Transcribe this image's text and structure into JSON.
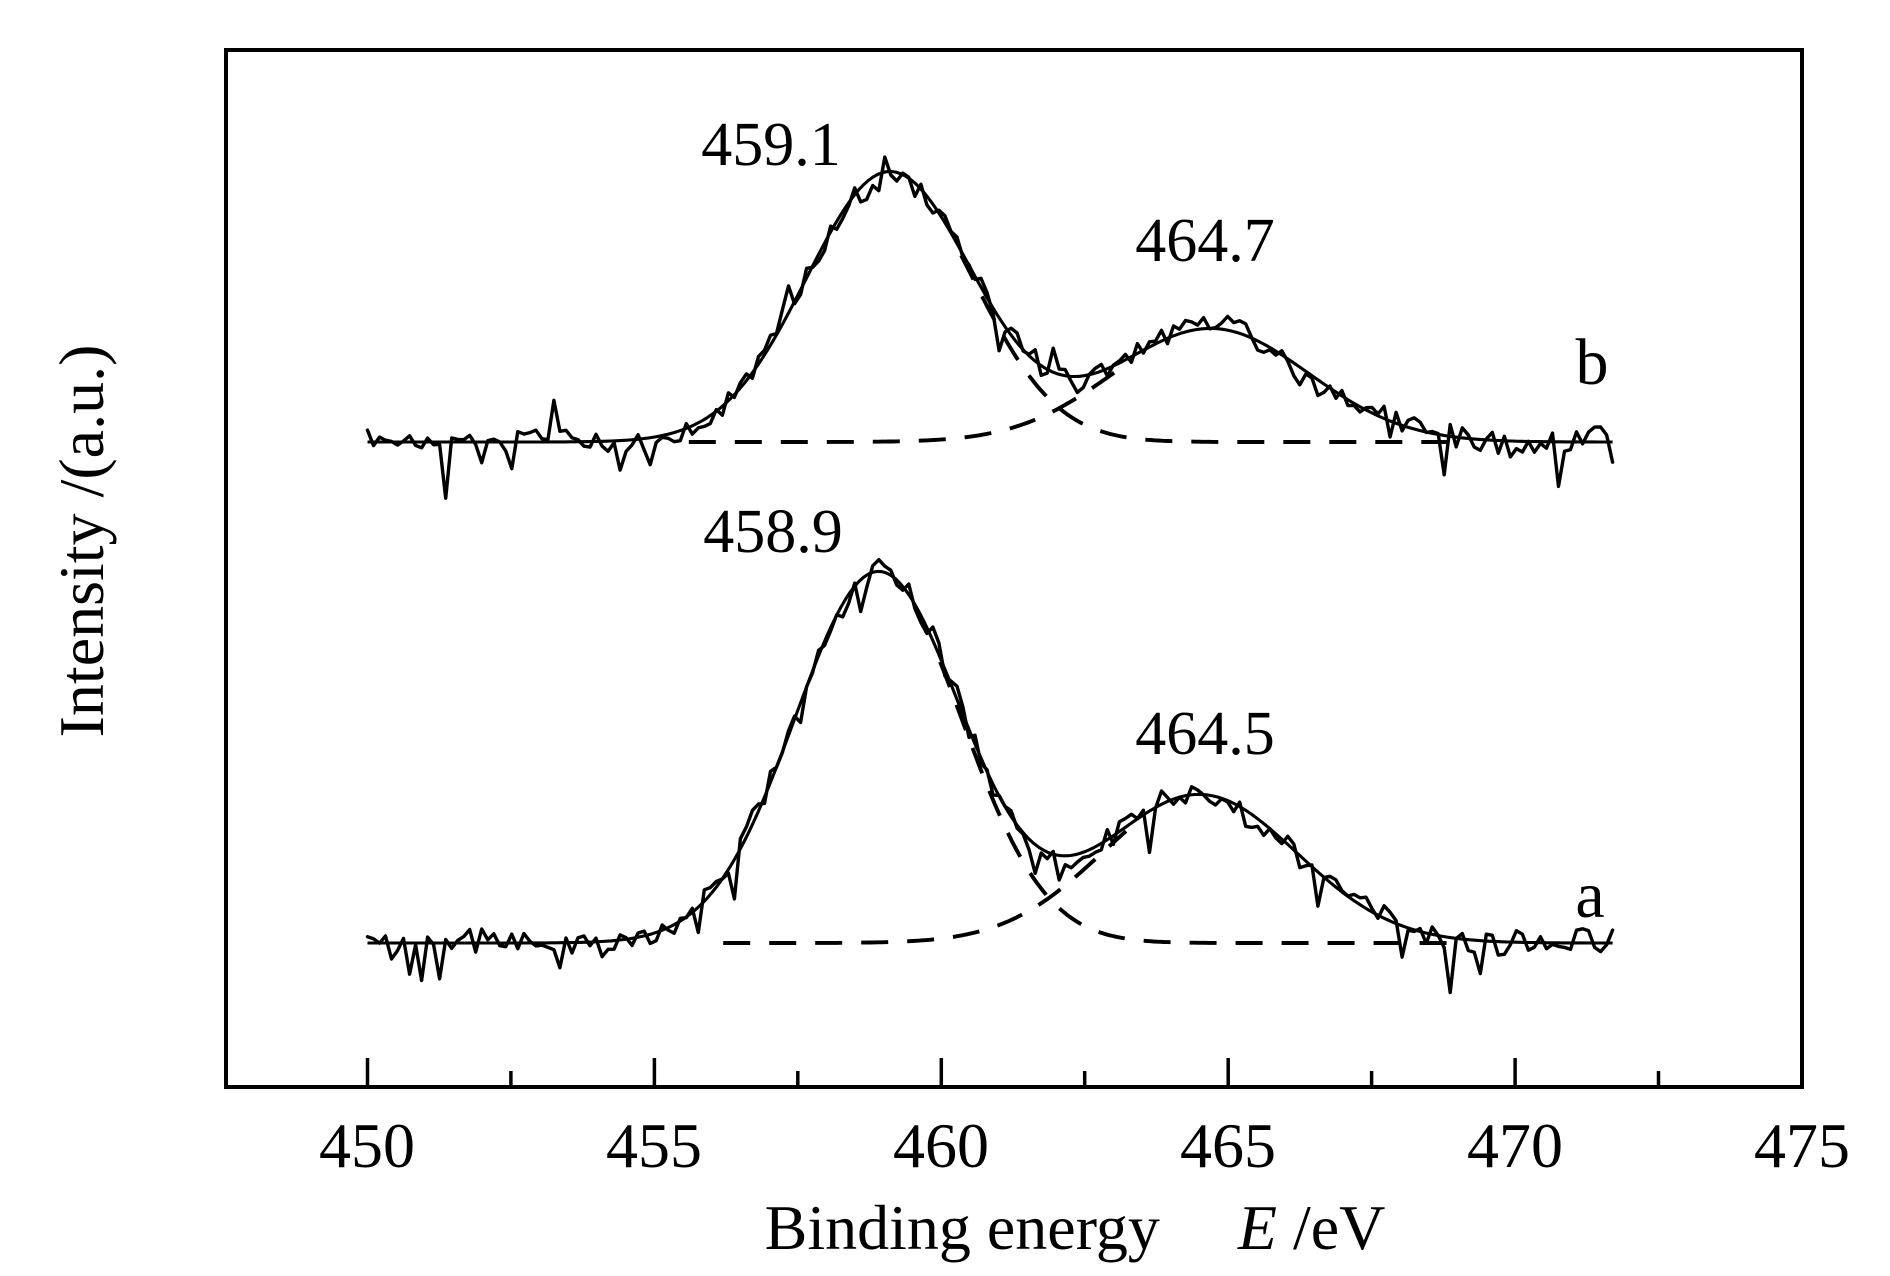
{
  "figure": {
    "background": "#ffffff",
    "line_color": "#000000"
  },
  "chart_data": {
    "type": "line",
    "description": "Two stacked XPS spectra (labeled a and b), each with a noisy measured trace, a smooth fitted envelope, and two dashed Gaussian fit components over a flat dashed baseline.",
    "xlabel_prefix": "Binding energy",
    "xlabel_symbol": "E",
    "xlabel_suffix": "/eV",
    "ylabel": "Intensity /(a.u.)",
    "xlim": [
      447.5,
      475
    ],
    "x_major_ticks": [
      450,
      455,
      460,
      465,
      470,
      475
    ],
    "x_minor_tick_step": 2.5,
    "y_axis_scale": "arbitrary units, no ticks",
    "grid": "off",
    "legend": "none",
    "axis_color": "#000000",
    "background": "#ffffff",
    "series": [
      {
        "name": "b",
        "letter": "b",
        "vertical_position": "top",
        "data_range_eV": [
          450.0,
          471.7
        ],
        "fit_range_eV": [
          455.6,
          469.9
        ],
        "peaks": [
          {
            "label": "459.1",
            "center_eV": 459.1,
            "sigma_eV": 1.45,
            "rel_height": 1.0
          },
          {
            "label": "464.7",
            "center_eV": 464.7,
            "sigma_eV": 1.7,
            "rel_height": 0.42
          }
        ],
        "line_styles": {
          "raw": "solid noisy",
          "envelope": "solid smooth",
          "components": "dashed",
          "baseline": "flat dashed"
        }
      },
      {
        "name": "a",
        "letter": "a",
        "vertical_position": "bottom",
        "data_range_eV": [
          450.0,
          471.7
        ],
        "fit_range_eV": [
          456.2,
          469.7
        ],
        "peaks": [
          {
            "label": "458.9",
            "center_eV": 458.9,
            "sigma_eV": 1.45,
            "rel_height": 1.0
          },
          {
            "label": "464.5",
            "center_eV": 464.5,
            "sigma_eV": 1.7,
            "rel_height": 0.4
          }
        ],
        "line_styles": {
          "raw": "solid noisy",
          "envelope": "solid smooth",
          "components": "dashed",
          "baseline": "flat dashed"
        }
      }
    ]
  }
}
